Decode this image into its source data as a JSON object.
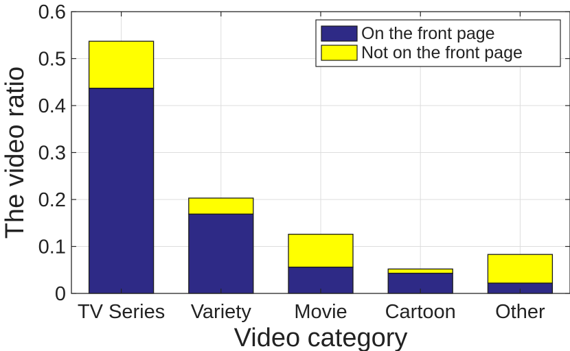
{
  "chart_data": {
    "type": "bar",
    "stacked": true,
    "title": "",
    "xlabel": "Video category",
    "ylabel": "The video ratio",
    "ylim": [
      0,
      0.6
    ],
    "yticks": [
      "0",
      "0.1",
      "0.2",
      "0.3",
      "0.4",
      "0.5",
      "0.6"
    ],
    "categories": [
      "TV Series",
      "Variety",
      "Movie",
      "Cartoon",
      "Other"
    ],
    "series": [
      {
        "name": "On the front page",
        "color": "#2e2a86",
        "values": [
          0.437,
          0.169,
          0.056,
          0.043,
          0.022
        ]
      },
      {
        "name": "Not on the front page",
        "color": "#ffff00",
        "values": [
          0.1,
          0.034,
          0.07,
          0.009,
          0.061
        ]
      }
    ],
    "grid": true,
    "legend_position": "top-right"
  }
}
